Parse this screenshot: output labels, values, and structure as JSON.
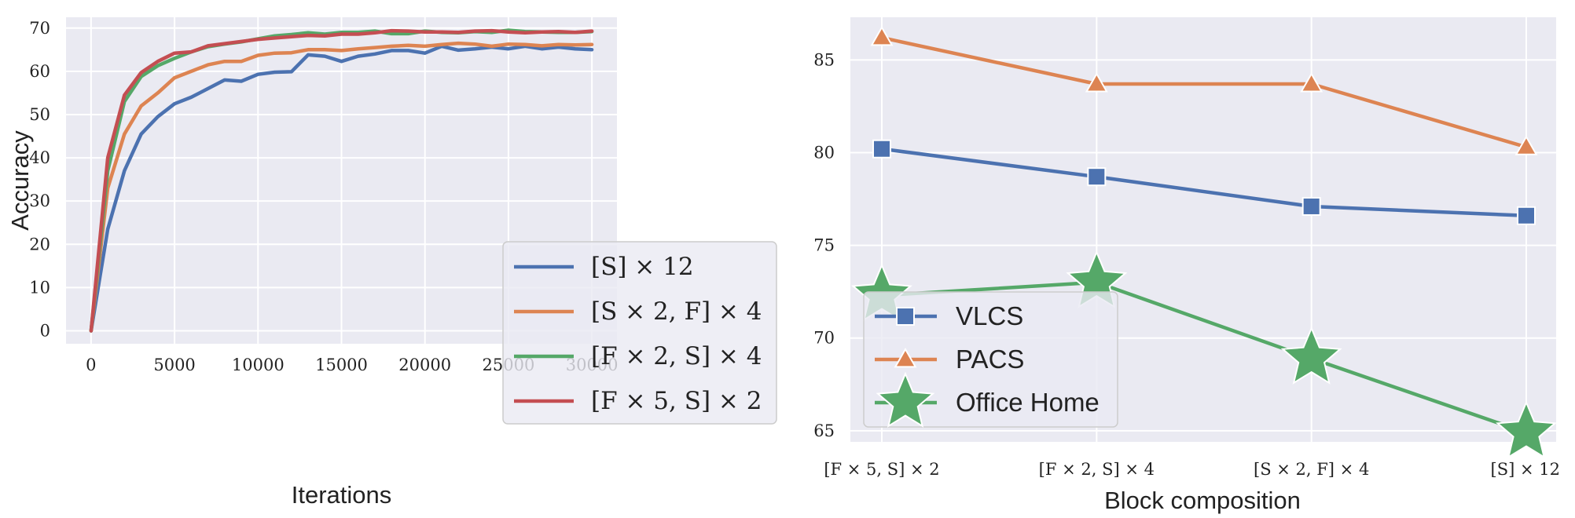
{
  "chart_data": [
    {
      "type": "line",
      "xlabel": "Iterations",
      "ylabel": "Accuracy",
      "xlim": [
        -1500,
        31500
      ],
      "ylim": [
        -3,
        72.5
      ],
      "xticks": [
        0,
        5000,
        10000,
        15000,
        20000,
        25000,
        30000
      ],
      "xtick_labels": [
        "0",
        "5000",
        "10000",
        "15000",
        "20000",
        "25000",
        "30000"
      ],
      "yticks": [
        0,
        10,
        20,
        30,
        40,
        50,
        60,
        70
      ],
      "ytick_labels": [
        "0",
        "10",
        "20",
        "30",
        "40",
        "50",
        "60",
        "70"
      ],
      "grid": true,
      "legend_position": "lower-right",
      "x": [
        0,
        1000,
        2000,
        3000,
        4000,
        5000,
        6000,
        7000,
        8000,
        9000,
        10000,
        11000,
        12000,
        13000,
        14000,
        15000,
        16000,
        17000,
        18000,
        19000,
        20000,
        21000,
        22000,
        23000,
        24000,
        25000,
        26000,
        27000,
        28000,
        29000,
        30000
      ],
      "series": [
        {
          "name": "[S] × 12",
          "color": "#4c72b0",
          "values": [
            0,
            23.5,
            37,
            45.5,
            49.5,
            52.5,
            54,
            56,
            58,
            57.7,
            59.3,
            59.8,
            59.9,
            63.8,
            63.5,
            62.3,
            63.5,
            64,
            64.8,
            64.8,
            64.2,
            65.8,
            64.9,
            65.2,
            65.6,
            65.2,
            65.8,
            65.2,
            65.6,
            65.2,
            65
          ]
        },
        {
          "name": "[S × 2, F] × 4",
          "color": "#dd8452",
          "values": [
            0,
            33,
            45.5,
            52,
            55,
            58.5,
            60,
            61.5,
            62.3,
            62.3,
            63.7,
            64.2,
            64.3,
            65,
            65,
            64.8,
            65.2,
            65.5,
            65.8,
            66,
            65.8,
            66.2,
            66.5,
            66.3,
            65.8,
            66.3,
            66.2,
            65.9,
            66.2,
            66.1,
            66.2
          ]
        },
        {
          "name": "[F × 2, S] × 4",
          "color": "#55a868",
          "values": [
            0,
            37,
            53,
            58.8,
            61.3,
            63,
            64.5,
            65.7,
            66.3,
            66.8,
            67.5,
            68.2,
            68.5,
            68.9,
            68.6,
            69,
            69,
            69.3,
            68.7,
            68.7,
            69.3,
            69,
            68.9,
            69.2,
            69,
            69.5,
            69.2,
            69.1,
            69,
            69,
            69.2
          ]
        },
        {
          "name": "[F × 5, S] × 2",
          "color": "#c44e52",
          "values": [
            0,
            40,
            54.5,
            59.7,
            62.3,
            64.2,
            64.5,
            65.9,
            66.4,
            66.9,
            67.4,
            67.7,
            68,
            68.3,
            68.2,
            68.6,
            68.6,
            68.9,
            69.4,
            69.3,
            69.1,
            69.1,
            69,
            69.3,
            69.4,
            69.1,
            68.9,
            69.1,
            69.2,
            69,
            69.3
          ]
        }
      ]
    },
    {
      "type": "line",
      "xlabel": "Block composition",
      "ylabel": "",
      "categories": [
        "[F × 5, S] × 2",
        "[F × 2, S] × 4",
        "[S × 2, F] × 4",
        "[S] × 12"
      ],
      "ylim": [
        64.4,
        87.3
      ],
      "yticks": [
        65,
        70,
        75,
        80,
        85
      ],
      "ytick_labels": [
        "65",
        "70",
        "75",
        "80",
        "85"
      ],
      "grid": true,
      "legend_position": "lower-left",
      "series": [
        {
          "name": "VLCS",
          "color": "#4c72b0",
          "marker": "square",
          "values": [
            80.2,
            78.7,
            77.1,
            76.6
          ]
        },
        {
          "name": "PACS",
          "color": "#dd8452",
          "marker": "triangle",
          "values": [
            86.2,
            83.7,
            83.7,
            80.3
          ]
        },
        {
          "name": "Office Home",
          "color": "#55a868",
          "marker": "star",
          "values": [
            72.3,
            73,
            68.9,
            64.9
          ]
        }
      ]
    }
  ]
}
